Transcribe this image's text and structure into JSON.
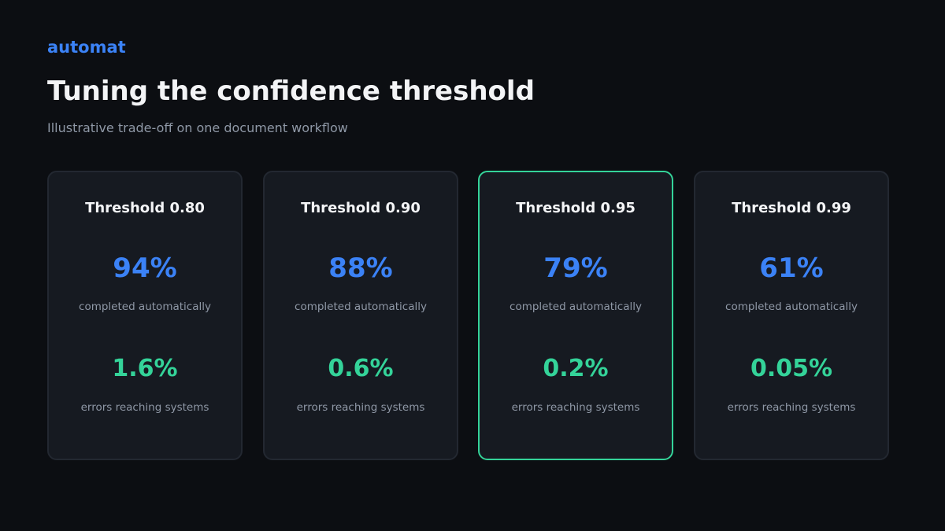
{
  "header": {
    "brand": "automat",
    "title": "Tuning the confidence threshold",
    "subtitle": "Illustrative trade-off on one document workflow"
  },
  "colors": {
    "background": "#0c0e12",
    "card_background": "#161a21",
    "card_border": "#232831",
    "accent_blue": "#3b82f6",
    "accent_green": "#34d399",
    "muted_text": "#8f98a6"
  },
  "cards": [
    {
      "title": "Threshold 0.80",
      "auto_value": "94%",
      "auto_label": "completed automatically",
      "error_value": "1.6%",
      "error_label": "errors reaching systems",
      "highlighted": false
    },
    {
      "title": "Threshold 0.90",
      "auto_value": "88%",
      "auto_label": "completed automatically",
      "error_value": "0.6%",
      "error_label": "errors reaching systems",
      "highlighted": false
    },
    {
      "title": "Threshold 0.95",
      "auto_value": "79%",
      "auto_label": "completed automatically",
      "error_value": "0.2%",
      "error_label": "errors reaching systems",
      "highlighted": true
    },
    {
      "title": "Threshold 0.99",
      "auto_value": "61%",
      "auto_label": "completed automatically",
      "error_value": "0.05%",
      "error_label": "errors reaching systems",
      "highlighted": false
    }
  ]
}
